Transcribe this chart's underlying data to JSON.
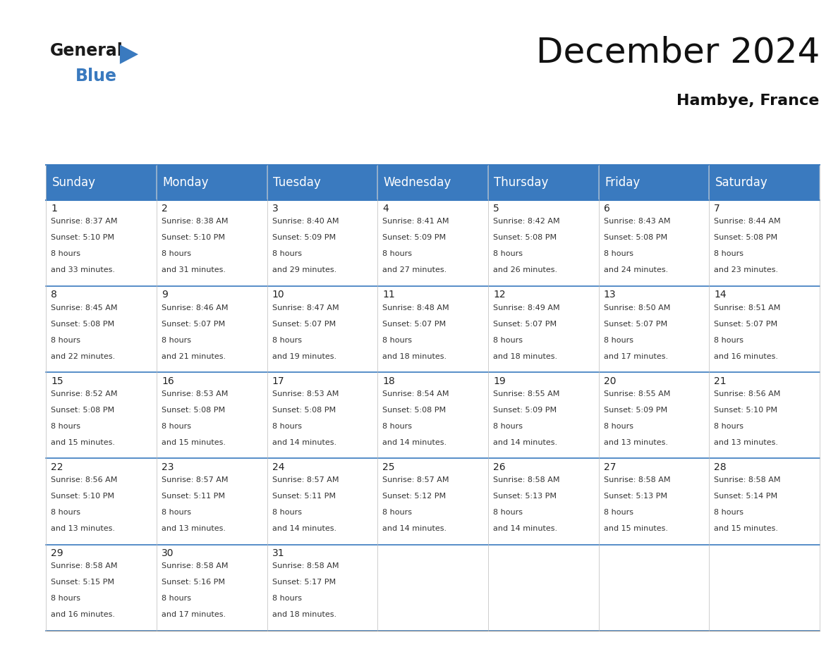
{
  "title": "December 2024",
  "subtitle": "Hambye, France",
  "header_color": "#3a7abf",
  "header_text_color": "#ffffff",
  "border_color": "#3a7abf",
  "day_names": [
    "Sunday",
    "Monday",
    "Tuesday",
    "Wednesday",
    "Thursday",
    "Friday",
    "Saturday"
  ],
  "days": [
    {
      "day": 1,
      "col": 0,
      "row": 0,
      "sunrise": "8:37 AM",
      "sunset": "5:10 PM",
      "daylight": "8 hours",
      "daylight2": "and 33 minutes."
    },
    {
      "day": 2,
      "col": 1,
      "row": 0,
      "sunrise": "8:38 AM",
      "sunset": "5:10 PM",
      "daylight": "8 hours",
      "daylight2": "and 31 minutes."
    },
    {
      "day": 3,
      "col": 2,
      "row": 0,
      "sunrise": "8:40 AM",
      "sunset": "5:09 PM",
      "daylight": "8 hours",
      "daylight2": "and 29 minutes."
    },
    {
      "day": 4,
      "col": 3,
      "row": 0,
      "sunrise": "8:41 AM",
      "sunset": "5:09 PM",
      "daylight": "8 hours",
      "daylight2": "and 27 minutes."
    },
    {
      "day": 5,
      "col": 4,
      "row": 0,
      "sunrise": "8:42 AM",
      "sunset": "5:08 PM",
      "daylight": "8 hours",
      "daylight2": "and 26 minutes."
    },
    {
      "day": 6,
      "col": 5,
      "row": 0,
      "sunrise": "8:43 AM",
      "sunset": "5:08 PM",
      "daylight": "8 hours",
      "daylight2": "and 24 minutes."
    },
    {
      "day": 7,
      "col": 6,
      "row": 0,
      "sunrise": "8:44 AM",
      "sunset": "5:08 PM",
      "daylight": "8 hours",
      "daylight2": "and 23 minutes."
    },
    {
      "day": 8,
      "col": 0,
      "row": 1,
      "sunrise": "8:45 AM",
      "sunset": "5:08 PM",
      "daylight": "8 hours",
      "daylight2": "and 22 minutes."
    },
    {
      "day": 9,
      "col": 1,
      "row": 1,
      "sunrise": "8:46 AM",
      "sunset": "5:07 PM",
      "daylight": "8 hours",
      "daylight2": "and 21 minutes."
    },
    {
      "day": 10,
      "col": 2,
      "row": 1,
      "sunrise": "8:47 AM",
      "sunset": "5:07 PM",
      "daylight": "8 hours",
      "daylight2": "and 19 minutes."
    },
    {
      "day": 11,
      "col": 3,
      "row": 1,
      "sunrise": "8:48 AM",
      "sunset": "5:07 PM",
      "daylight": "8 hours",
      "daylight2": "and 18 minutes."
    },
    {
      "day": 12,
      "col": 4,
      "row": 1,
      "sunrise": "8:49 AM",
      "sunset": "5:07 PM",
      "daylight": "8 hours",
      "daylight2": "and 18 minutes."
    },
    {
      "day": 13,
      "col": 5,
      "row": 1,
      "sunrise": "8:50 AM",
      "sunset": "5:07 PM",
      "daylight": "8 hours",
      "daylight2": "and 17 minutes."
    },
    {
      "day": 14,
      "col": 6,
      "row": 1,
      "sunrise": "8:51 AM",
      "sunset": "5:07 PM",
      "daylight": "8 hours",
      "daylight2": "and 16 minutes."
    },
    {
      "day": 15,
      "col": 0,
      "row": 2,
      "sunrise": "8:52 AM",
      "sunset": "5:08 PM",
      "daylight": "8 hours",
      "daylight2": "and 15 minutes."
    },
    {
      "day": 16,
      "col": 1,
      "row": 2,
      "sunrise": "8:53 AM",
      "sunset": "5:08 PM",
      "daylight": "8 hours",
      "daylight2": "and 15 minutes."
    },
    {
      "day": 17,
      "col": 2,
      "row": 2,
      "sunrise": "8:53 AM",
      "sunset": "5:08 PM",
      "daylight": "8 hours",
      "daylight2": "and 14 minutes."
    },
    {
      "day": 18,
      "col": 3,
      "row": 2,
      "sunrise": "8:54 AM",
      "sunset": "5:08 PM",
      "daylight": "8 hours",
      "daylight2": "and 14 minutes."
    },
    {
      "day": 19,
      "col": 4,
      "row": 2,
      "sunrise": "8:55 AM",
      "sunset": "5:09 PM",
      "daylight": "8 hours",
      "daylight2": "and 14 minutes."
    },
    {
      "day": 20,
      "col": 5,
      "row": 2,
      "sunrise": "8:55 AM",
      "sunset": "5:09 PM",
      "daylight": "8 hours",
      "daylight2": "and 13 minutes."
    },
    {
      "day": 21,
      "col": 6,
      "row": 2,
      "sunrise": "8:56 AM",
      "sunset": "5:10 PM",
      "daylight": "8 hours",
      "daylight2": "and 13 minutes."
    },
    {
      "day": 22,
      "col": 0,
      "row": 3,
      "sunrise": "8:56 AM",
      "sunset": "5:10 PM",
      "daylight": "8 hours",
      "daylight2": "and 13 minutes."
    },
    {
      "day": 23,
      "col": 1,
      "row": 3,
      "sunrise": "8:57 AM",
      "sunset": "5:11 PM",
      "daylight": "8 hours",
      "daylight2": "and 13 minutes."
    },
    {
      "day": 24,
      "col": 2,
      "row": 3,
      "sunrise": "8:57 AM",
      "sunset": "5:11 PM",
      "daylight": "8 hours",
      "daylight2": "and 14 minutes."
    },
    {
      "day": 25,
      "col": 3,
      "row": 3,
      "sunrise": "8:57 AM",
      "sunset": "5:12 PM",
      "daylight": "8 hours",
      "daylight2": "and 14 minutes."
    },
    {
      "day": 26,
      "col": 4,
      "row": 3,
      "sunrise": "8:58 AM",
      "sunset": "5:13 PM",
      "daylight": "8 hours",
      "daylight2": "and 14 minutes."
    },
    {
      "day": 27,
      "col": 5,
      "row": 3,
      "sunrise": "8:58 AM",
      "sunset": "5:13 PM",
      "daylight": "8 hours",
      "daylight2": "and 15 minutes."
    },
    {
      "day": 28,
      "col": 6,
      "row": 3,
      "sunrise": "8:58 AM",
      "sunset": "5:14 PM",
      "daylight": "8 hours",
      "daylight2": "and 15 minutes."
    },
    {
      "day": 29,
      "col": 0,
      "row": 4,
      "sunrise": "8:58 AM",
      "sunset": "5:15 PM",
      "daylight": "8 hours",
      "daylight2": "and 16 minutes."
    },
    {
      "day": 30,
      "col": 1,
      "row": 4,
      "sunrise": "8:58 AM",
      "sunset": "5:16 PM",
      "daylight": "8 hours",
      "daylight2": "and 17 minutes."
    },
    {
      "day": 31,
      "col": 2,
      "row": 4,
      "sunrise": "8:58 AM",
      "sunset": "5:17 PM",
      "daylight": "8 hours",
      "daylight2": "and 18 minutes."
    }
  ],
  "num_rows": 5,
  "num_cols": 7,
  "logo_general_color": "#1a1a1a",
  "logo_blue_color": "#3a7abf",
  "title_fontsize": 36,
  "subtitle_fontsize": 16,
  "header_fontsize": 12,
  "day_num_fontsize": 10,
  "cell_text_fontsize": 8
}
